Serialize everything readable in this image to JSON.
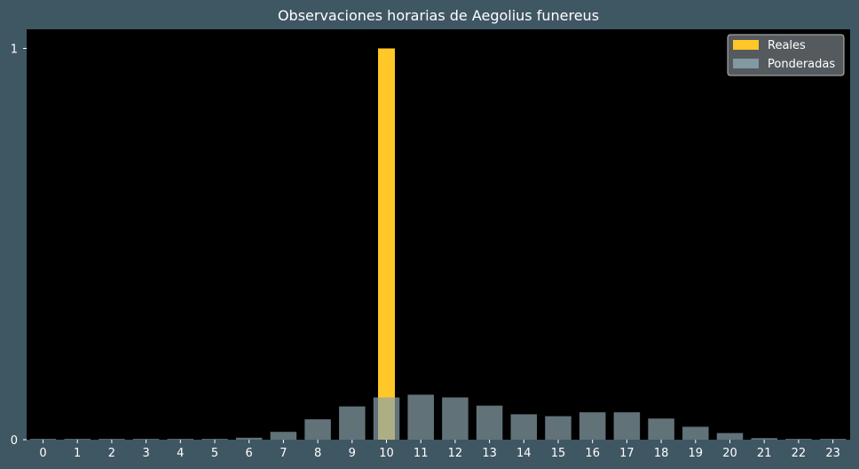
{
  "chart_data": {
    "type": "bar",
    "title": "Observaciones horarias de Aegolius funereus",
    "xlabel": "",
    "ylabel": "",
    "categories": [
      "0",
      "1",
      "2",
      "3",
      "4",
      "5",
      "6",
      "7",
      "8",
      "9",
      "10",
      "11",
      "12",
      "13",
      "14",
      "15",
      "16",
      "17",
      "18",
      "19",
      "20",
      "21",
      "22",
      "23"
    ],
    "series": [
      {
        "name": "Reales",
        "color": "#ffc727",
        "values": [
          0,
          0,
          0,
          0,
          0,
          0,
          0,
          0,
          0,
          0,
          1,
          0,
          0,
          0,
          0,
          0,
          0,
          0,
          0,
          0,
          0,
          0,
          0,
          0
        ]
      },
      {
        "name": "Ponderadas",
        "color": "#8aa4ab",
        "values": [
          0.002,
          0.002,
          0.002,
          0.002,
          0.002,
          0.002,
          0.005,
          0.02,
          0.052,
          0.085,
          0.108,
          0.115,
          0.108,
          0.087,
          0.065,
          0.06,
          0.07,
          0.07,
          0.054,
          0.033,
          0.017,
          0.004,
          0.002,
          0.002
        ]
      }
    ],
    "yticks": [
      0,
      1
    ],
    "ylim": [
      0,
      1.05
    ],
    "legend_position": "top-right",
    "grid": false
  }
}
